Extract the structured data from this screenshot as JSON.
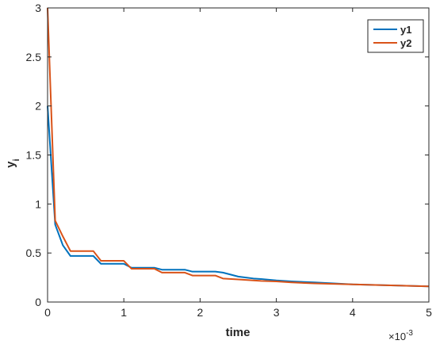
{
  "chart_data": {
    "type": "line",
    "title": "",
    "xlabel": "time",
    "ylabel": "y",
    "ylabel_subscript": "i",
    "x_exponent_label": "×10",
    "x_exponent_power": "-3",
    "xlim": [
      0,
      0.005
    ],
    "ylim": [
      0,
      3
    ],
    "xticks": [
      0,
      0.001,
      0.002,
      0.003,
      0.004,
      0.005
    ],
    "xtick_labels": [
      "0",
      "1",
      "2",
      "3",
      "4",
      "5"
    ],
    "yticks": [
      0,
      0.5,
      1,
      1.5,
      2,
      2.5,
      3
    ],
    "ytick_labels": [
      "0",
      "0.5",
      "1",
      "1.5",
      "2",
      "2.5",
      "3"
    ],
    "grid": false,
    "legend_position": "top-right",
    "series": [
      {
        "name": "y1",
        "color": "#0072BD",
        "x": [
          0,
          0.0001,
          0.0002,
          0.0003,
          0.0004,
          0.0005,
          0.0006,
          0.0007,
          0.0008,
          0.0009,
          0.001,
          0.0011,
          0.0012,
          0.0013,
          0.0014,
          0.0015,
          0.0016,
          0.0017,
          0.0018,
          0.0019,
          0.002,
          0.0021,
          0.0022,
          0.0023,
          0.0024,
          0.0025,
          0.0026,
          0.0027,
          0.0028,
          0.003,
          0.0032,
          0.0035,
          0.004,
          0.0045,
          0.005
        ],
        "y": [
          2.0,
          0.79,
          0.58,
          0.47,
          0.47,
          0.47,
          0.47,
          0.39,
          0.39,
          0.39,
          0.39,
          0.35,
          0.35,
          0.35,
          0.35,
          0.33,
          0.33,
          0.33,
          0.33,
          0.31,
          0.31,
          0.31,
          0.31,
          0.3,
          0.28,
          0.26,
          0.25,
          0.24,
          0.235,
          0.22,
          0.21,
          0.2,
          0.18,
          0.17,
          0.16
        ]
      },
      {
        "name": "y2",
        "color": "#D95319",
        "x": [
          0,
          0.0001,
          0.0002,
          0.0003,
          0.0004,
          0.0005,
          0.0006,
          0.0007,
          0.0008,
          0.0009,
          0.001,
          0.0011,
          0.0012,
          0.0013,
          0.0014,
          0.0015,
          0.0016,
          0.0017,
          0.0018,
          0.0019,
          0.002,
          0.0021,
          0.0022,
          0.0023,
          0.0025,
          0.0028,
          0.003,
          0.0032,
          0.0035,
          0.004,
          0.0045,
          0.005
        ],
        "y": [
          3.0,
          0.83,
          0.67,
          0.52,
          0.52,
          0.52,
          0.52,
          0.42,
          0.42,
          0.42,
          0.42,
          0.34,
          0.34,
          0.34,
          0.34,
          0.3,
          0.3,
          0.3,
          0.3,
          0.27,
          0.27,
          0.27,
          0.27,
          0.24,
          0.23,
          0.215,
          0.21,
          0.2,
          0.19,
          0.18,
          0.17,
          0.16
        ]
      }
    ]
  }
}
